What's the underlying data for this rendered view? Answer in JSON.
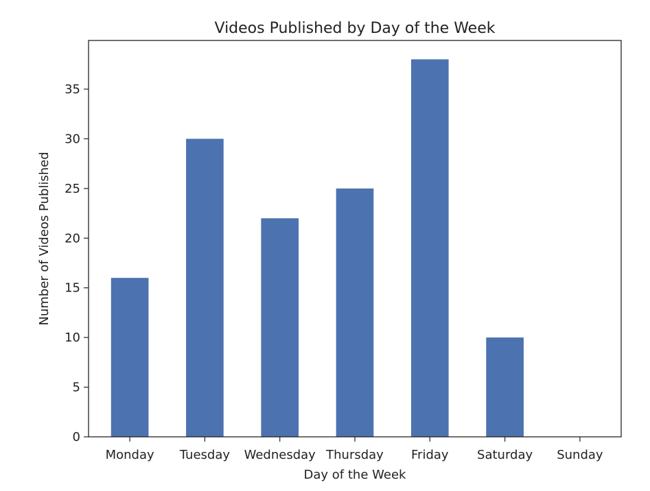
{
  "chart_data": {
    "type": "bar",
    "title": "Videos Published by Day of the Week",
    "xlabel": "Day of the Week",
    "ylabel": "Number of Videos Published",
    "categories": [
      "Monday",
      "Tuesday",
      "Wednesday",
      "Thursday",
      "Friday",
      "Saturday",
      "Sunday"
    ],
    "values": [
      16,
      30,
      22,
      25,
      38,
      10,
      0
    ],
    "ylim": [
      0,
      39.9
    ],
    "yticks": [
      0,
      5,
      10,
      15,
      20,
      25,
      30,
      35
    ],
    "grid": false,
    "legend": "none",
    "bar_color": "#4c72b0"
  }
}
